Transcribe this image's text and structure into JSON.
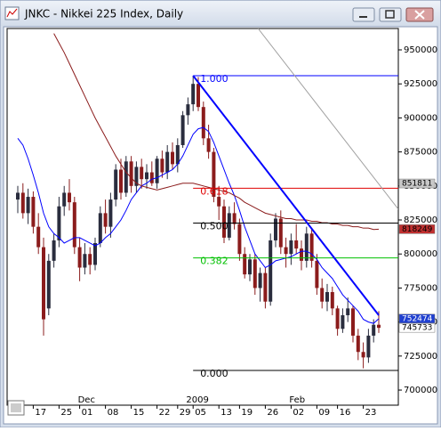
{
  "chart_data": {
    "type": "candlestick",
    "title": "JNKC - Nikkei 225 Index, Daily",
    "categories": [
      null,
      null,
      null,
      "17",
      null,
      null,
      null,
      null,
      "25",
      null,
      null,
      null,
      "01",
      null,
      null,
      null,
      null,
      "08",
      null,
      null,
      null,
      null,
      "15",
      null,
      null,
      null,
      null,
      "22",
      null,
      null,
      null,
      "29",
      null,
      null,
      "05",
      null,
      null,
      null,
      null,
      "13",
      null,
      null,
      null,
      "19",
      null,
      null,
      null,
      null,
      "26",
      null,
      null,
      null,
      null,
      "02",
      null,
      null,
      null,
      null,
      "09",
      null,
      null,
      null,
      "16",
      null,
      null,
      null,
      null,
      "23",
      null,
      null,
      null
    ],
    "open": [
      840000,
      845000,
      830000,
      842000,
      820000,
      805000,
      760000,
      795000,
      810000,
      835000,
      845000,
      838000,
      805000,
      790000,
      800000,
      792000,
      808000,
      830000,
      820000,
      840000,
      862000,
      845000,
      868000,
      850000,
      864000,
      855000,
      860000,
      852000,
      870000,
      860000,
      875000,
      866000,
      880000,
      902000,
      910000,
      925000,
      908000,
      885000,
      875000,
      842000,
      835000,
      812000,
      830000,
      822000,
      800000,
      785000,
      796000,
      775000,
      786000,
      765000,
      810000,
      826000,
      805000,
      800000,
      810000,
      804000,
      795000,
      815000,
      795000,
      775000,
      765000,
      772000,
      760000,
      745000,
      755000,
      760000,
      740000,
      728000,
      724000,
      740000,
      748000
    ],
    "high": [
      850000,
      852000,
      848000,
      846000,
      830000,
      812000,
      800000,
      815000,
      842000,
      850000,
      855000,
      842000,
      812000,
      808000,
      805000,
      812000,
      835000,
      840000,
      845000,
      866000,
      870000,
      872000,
      872000,
      868000,
      870000,
      866000,
      868000,
      872000,
      876000,
      880000,
      882000,
      885000,
      905000,
      915000,
      931000,
      930000,
      912000,
      895000,
      878000,
      850000,
      840000,
      835000,
      838000,
      826000,
      805000,
      800000,
      800000,
      790000,
      790000,
      815000,
      830000,
      832000,
      812000,
      815000,
      822000,
      810000,
      820000,
      818000,
      800000,
      782000,
      778000,
      776000,
      762000,
      760000,
      768000,
      762000,
      745000,
      735000,
      745000,
      752000,
      758000
    ],
    "low": [
      830000,
      826000,
      822000,
      815000,
      800000,
      740000,
      755000,
      790000,
      805000,
      828000,
      832000,
      800000,
      780000,
      785000,
      785000,
      788000,
      805000,
      815000,
      812000,
      835000,
      840000,
      842000,
      845000,
      845000,
      848000,
      848000,
      850000,
      848000,
      856000,
      855000,
      862000,
      860000,
      878000,
      895000,
      905000,
      905000,
      880000,
      870000,
      838000,
      825000,
      808000,
      810000,
      818000,
      795000,
      782000,
      780000,
      770000,
      765000,
      760000,
      762000,
      805000,
      800000,
      790000,
      792000,
      800000,
      788000,
      790000,
      790000,
      770000,
      760000,
      758000,
      755000,
      740000,
      742000,
      750000,
      735000,
      722000,
      716000,
      720000,
      735000,
      742000
    ],
    "close": [
      845000,
      830000,
      842000,
      820000,
      805000,
      752000,
      795000,
      810000,
      835000,
      845000,
      838000,
      805000,
      790000,
      800000,
      792000,
      808000,
      830000,
      820000,
      840000,
      862000,
      845000,
      868000,
      850000,
      864000,
      855000,
      860000,
      852000,
      870000,
      860000,
      875000,
      866000,
      880000,
      902000,
      910000,
      925000,
      908000,
      885000,
      875000,
      842000,
      835000,
      812000,
      830000,
      822000,
      800000,
      785000,
      796000,
      775000,
      786000,
      765000,
      810000,
      826000,
      805000,
      800000,
      810000,
      804000,
      795000,
      815000,
      795000,
      775000,
      765000,
      772000,
      760000,
      745000,
      755000,
      760000,
      740000,
      728000,
      724000,
      740000,
      748000,
      745733
    ],
    "up_color": "#2a2d3e",
    "down_color": "#8b1c1c",
    "moving_averages": [
      {
        "color": "#0000ff",
        "values": [
          885000,
          880000,
          870000,
          858000,
          845000,
          830000,
          820000,
          815000,
          812000,
          808000,
          810000,
          812000,
          812000,
          810000,
          808000,
          806000,
          808000,
          812000,
          815000,
          820000,
          825000,
          832000,
          840000,
          845000,
          850000,
          852000,
          855000,
          856000,
          858000,
          860000,
          862000,
          866000,
          872000,
          880000,
          888000,
          892000,
          893000,
          890000,
          882000,
          872000,
          862000,
          852000,
          843000,
          832000,
          820000,
          810000,
          800000,
          795000,
          790000,
          792000,
          795000,
          796000,
          797000,
          798000,
          800000,
          802000,
          802000,
          800000,
          796000,
          790000,
          786000,
          782000,
          776000,
          770000,
          766000,
          762000,
          758000,
          752000,
          750000,
          749000,
          752474
        ]
      },
      {
        "color": "#8b1c1c",
        "values": [
          null,
          null,
          null,
          null,
          null,
          null,
          null,
          962000,
          955000,
          948000,
          940000,
          932000,
          924000,
          916000,
          908000,
          900000,
          893000,
          886000,
          879000,
          872000,
          866000,
          860000,
          856000,
          852000,
          850000,
          849000,
          848000,
          847000,
          848000,
          849000,
          850000,
          851000,
          852000,
          852000,
          852000,
          851000,
          850000,
          849000,
          848000,
          847000,
          846000,
          845000,
          843000,
          841000,
          838000,
          836000,
          834000,
          832000,
          830000,
          829000,
          828000,
          827000,
          826000,
          826000,
          825000,
          825000,
          825000,
          824000,
          824000,
          823000,
          823000,
          822000,
          822000,
          821000,
          821000,
          820000,
          820000,
          819000,
          819000,
          818000,
          818249
        ]
      }
    ],
    "ylim": [
      688900,
      965700
    ],
    "yticks": [
      950000,
      925000,
      900000,
      875000,
      850000,
      825000,
      800000,
      775000,
      750000,
      725000,
      700000
    ],
    "fibonacci": {
      "start_index": 34,
      "levels": [
        {
          "value": 931000,
          "label": "1.000",
          "color": "#0000ff"
        },
        {
          "value": 848300,
          "label": "0.618",
          "color": "#e00000"
        },
        {
          "value": 822700,
          "label": "0.500",
          "color": "#000000"
        },
        {
          "value": 797100,
          "label": "0.382",
          "color": "#00c000"
        },
        {
          "value": 714400,
          "label": "0.000",
          "color": "#000000"
        }
      ]
    },
    "trendlines": [
      {
        "color": "#0000ff",
        "start_index": 34,
        "start": 931000,
        "end_index": 70,
        "end": 755000
      },
      {
        "color": "#a0a0a0",
        "start_index": 46.6,
        "start": 965700,
        "end_index": 73.8,
        "end": 832900
      }
    ],
    "price_labels": [
      {
        "value": 851811,
        "color": "#c8c8c8",
        "text_color": "#000000"
      },
      {
        "value": 818249,
        "color": "#c03030",
        "text_color": "#000000"
      },
      {
        "value": 752474,
        "color": "#2040d0",
        "text_color": "#ffffff"
      },
      {
        "value": 745733,
        "color": "#ffffff",
        "text_color": "#000000"
      }
    ],
    "periods": [
      {
        "label": "Dec",
        "index": 12
      },
      {
        "label": "2009",
        "index": 33
      },
      {
        "label": "Feb",
        "index": 53
      }
    ]
  }
}
